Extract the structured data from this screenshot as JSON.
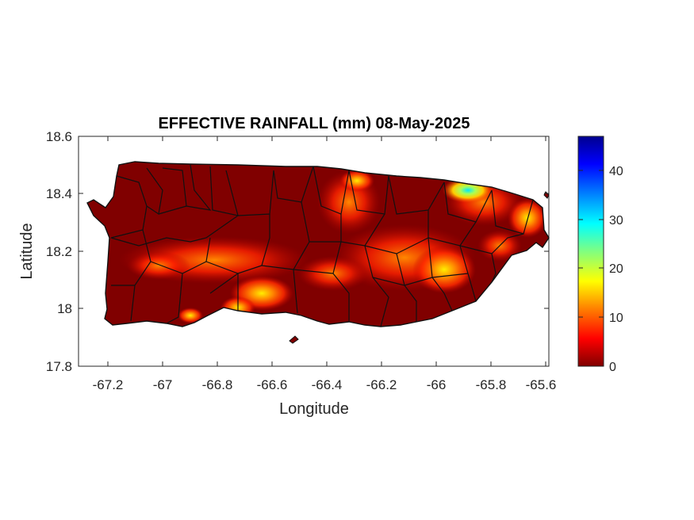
{
  "map": {
    "title": "EFFECTIVE RAINFALL (mm) 08-May-2025",
    "xlabel": "Longitude",
    "ylabel": "Latitude",
    "x_ticks": [
      "-67.2",
      "-67",
      "-66.8",
      "-66.6",
      "-66.4",
      "-66.2",
      "-66",
      "-65.8",
      "-65.6"
    ],
    "y_ticks": [
      "18.6",
      "18.4",
      "18.2",
      "18"
    ],
    "y_tick_bottom": "17.8",
    "xlim": [
      -67.3,
      -65.59
    ],
    "ylim": [
      17.8,
      18.6
    ],
    "colorbar": {
      "ticks": [
        "0",
        "10",
        "20",
        "30",
        "40"
      ],
      "range": [
        0,
        47
      ],
      "colormap": "jet",
      "colors": [
        "#800000",
        "#ff0000",
        "#ff8000",
        "#ffff00",
        "#80ff80",
        "#00ffff",
        "#0080ff",
        "#0000ff",
        "#00008f"
      ]
    },
    "land_color": "#800000"
  }
}
